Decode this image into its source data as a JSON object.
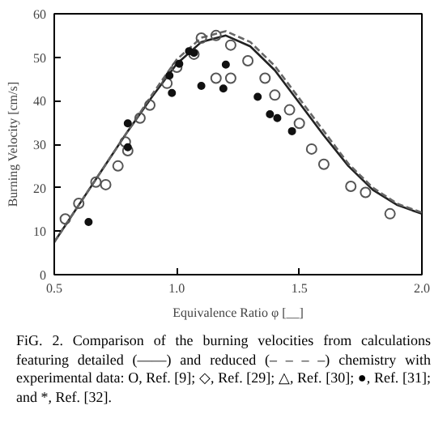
{
  "chart_data": {
    "type": "line",
    "xlabel": "Equivalence Ratio φ [__]",
    "ylabel": "Burning Velocity [cm/s]",
    "xlim": [
      0.5,
      2.0
    ],
    "ylim": [
      0,
      60
    ],
    "xticks": [
      {
        "value": 0.5,
        "label": "0.5"
      },
      {
        "value": 1.0,
        "label": "1.0"
      },
      {
        "value": 1.5,
        "label": "1.5"
      },
      {
        "value": 2.0,
        "label": "2.0"
      }
    ],
    "yticks": [
      0,
      10,
      20,
      30,
      40,
      50,
      60
    ],
    "grid": false,
    "series": [
      {
        "line_style": "solid",
        "color": "#222222",
        "x": [
          0.5,
          0.6,
          0.7,
          0.8,
          0.9,
          1.0,
          1.1,
          1.2,
          1.3,
          1.4,
          1.5,
          1.6,
          1.7,
          1.8,
          1.9,
          2.0
        ],
        "values": [
          7.5,
          16,
          24.5,
          33,
          41,
          48.5,
          53.5,
          55,
          52.5,
          47,
          39.5,
          32,
          25,
          19.5,
          16,
          14
        ]
      },
      {
        "line_style": "dashed",
        "color": "#666666",
        "x": [
          0.5,
          0.6,
          0.7,
          0.8,
          0.9,
          1.0,
          1.1,
          1.2,
          1.3,
          1.4,
          1.5,
          1.6,
          1.7,
          1.8,
          1.9,
          2.0
        ],
        "values": [
          7.5,
          16,
          24.5,
          33,
          41.5,
          49.5,
          54.5,
          56,
          53.5,
          48,
          40.5,
          33,
          25.5,
          20,
          16.3,
          14.3
        ]
      },
      {
        "type": "scatter",
        "marker": "circle",
        "color": "#555555",
        "x": [
          0.545,
          0.6,
          0.67,
          0.71,
          0.76,
          0.79,
          0.8,
          0.85,
          0.89,
          0.96,
          1.0,
          1.07,
          1.1,
          1.16,
          1.22,
          1.16,
          1.22,
          1.29,
          1.36,
          1.4,
          1.46,
          1.5,
          1.55,
          1.6,
          1.71,
          1.77,
          1.87
        ],
        "values": [
          12.8,
          16.4,
          21.3,
          20.7,
          25,
          30.5,
          28.5,
          36,
          39,
          44,
          47.7,
          50.7,
          54.4,
          55,
          52.8,
          45.2,
          45.2,
          49.2,
          45.2,
          41.3,
          37.9,
          34.8,
          28.9,
          25.4,
          20.3,
          18.9,
          14
        ]
      },
      {
        "type": "scatter",
        "marker": "circle",
        "color": "#111111",
        "x": [
          0.64,
          0.8,
          0.8,
          0.97,
          0.98,
          1.01,
          1.05,
          1.07,
          1.1,
          1.19,
          1.2,
          1.33,
          1.38,
          1.41,
          1.47
        ],
        "values": [
          12.1,
          29.3,
          34.8,
          45.8,
          41.8,
          48.5,
          51.4,
          51,
          43.4,
          42.8,
          48.3,
          40.9,
          36.9,
          36,
          33
        ]
      }
    ],
    "annotations": [
      "FiG. 2. Comparison of the burning velocities from calculations featuring detailed (——) and reduced (– – – –) chemistry with experimental data: O, Ref. [9]; ◇, Ref. [29]; △, Ref. [30]; ●, Ref. [31]; and *, Ref. [32]."
    ]
  }
}
